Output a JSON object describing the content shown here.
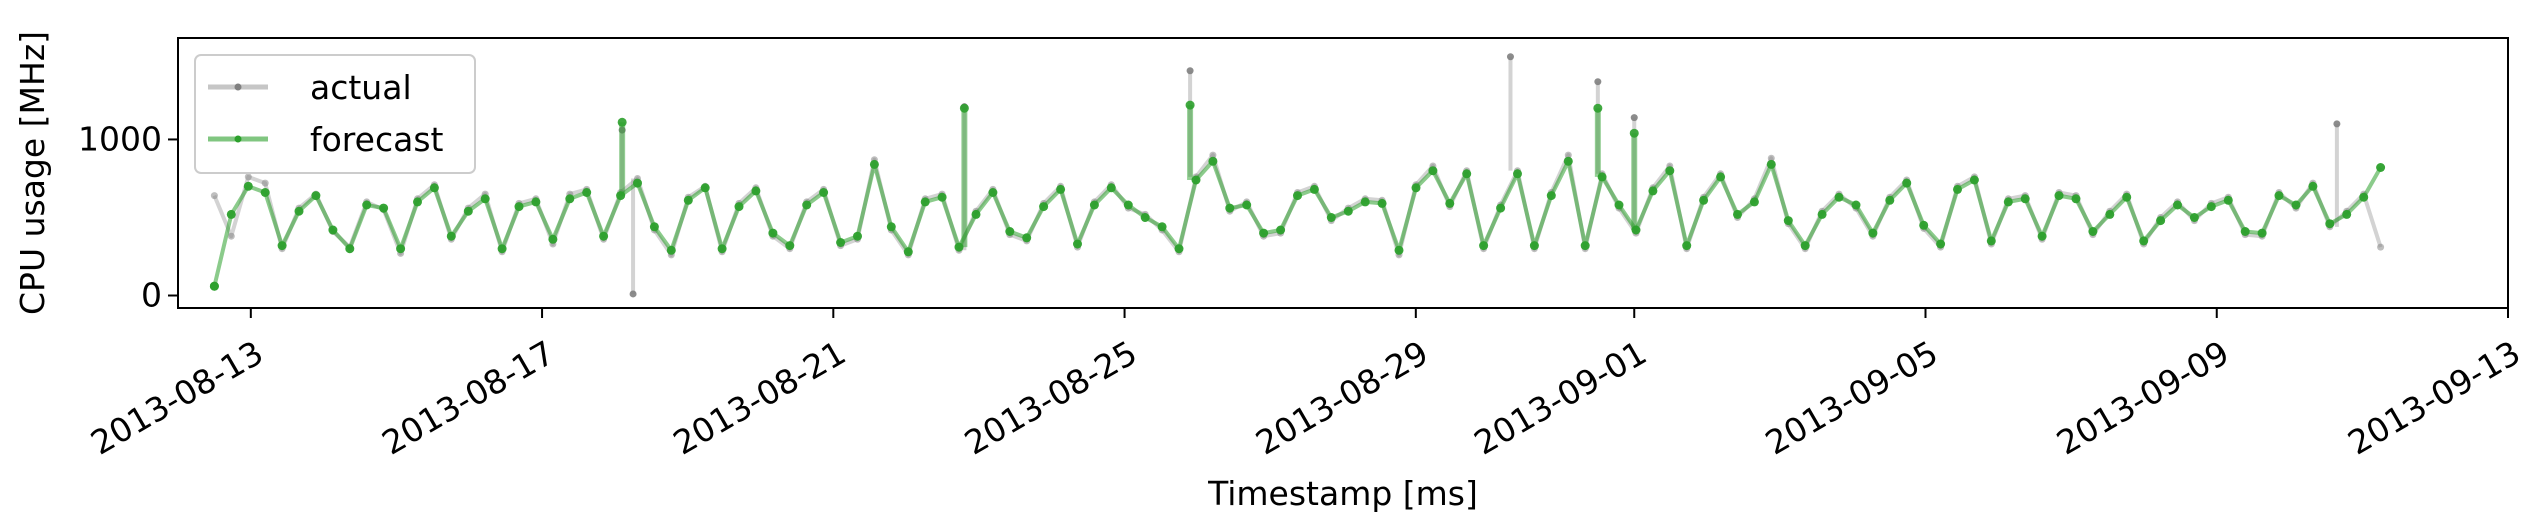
{
  "chart_data": {
    "type": "line",
    "title": "",
    "xlabel": "Timestamp [ms]",
    "ylabel": "CPU usage [MHz]",
    "xlim": [
      "2013-08-12",
      "2013-09-13"
    ],
    "ylim": [
      -80,
      1650
    ],
    "x_ticks": [
      "2013-08-13",
      "2013-08-17",
      "2013-08-21",
      "2013-08-25",
      "2013-08-29",
      "2013-09-01",
      "2013-09-05",
      "2013-09-09",
      "2013-09-13"
    ],
    "y_ticks": [
      0,
      1000
    ],
    "grid": false,
    "legend": {
      "position": "upper-left"
    },
    "series": [
      {
        "name": "actual",
        "color": "#808080",
        "x_start": "2013-08-12T12:00:00",
        "x_end": "2013-09-11T06:00:00",
        "values": [
          640,
          380,
          760,
          720,
          300,
          560,
          650,
          410,
          310,
          600,
          550,
          270,
          620,
          710,
          360,
          560,
          650,
          280,
          590,
          620,
          330,
          650,
          680,
          360,
          660,
          750,
          420,
          260,
          630,
          700,
          280,
          590,
          690,
          380,
          300,
          600,
          680,
          320,
          360,
          870,
          420,
          260,
          620,
          650,
          290,
          540,
          680,
          390,
          350,
          590,
          700,
          310,
          600,
          710,
          560,
          520,
          420,
          280,
          760,
          900,
          540,
          600,
          380,
          400,
          660,
          700,
          480,
          560,
          620,
          610,
          260,
          710,
          830,
          570,
          800,
          300,
          580,
          800,
          300,
          660,
          900,
          300,
          780,
          560,
          400,
          690,
          830,
          300,
          630,
          780,
          500,
          620,
          880,
          460,
          300,
          540,
          650,
          560,
          380,
          630,
          740,
          430,
          310,
          700,
          760,
          330,
          620,
          640,
          360,
          660,
          640,
          390,
          540,
          650,
          330,
          500,
          600,
          480,
          590,
          630,
          390,
          380,
          660,
          560,
          720,
          440,
          540,
          650,
          310
        ],
        "spikes": [
          [
            "2013-08-18T02:24:00",
            1060
          ],
          [
            "2013-08-18T06:00:00",
            10
          ],
          [
            "2013-08-22T19:12:00",
            1210
          ],
          [
            "2013-08-25T21:36:00",
            1440
          ],
          [
            "2013-08-30T07:12:00",
            1530
          ],
          [
            "2013-08-31T12:00:00",
            1370
          ],
          [
            "2013-09-01T00:00:00",
            1140
          ],
          [
            "2013-09-10T15:36:00",
            1100
          ]
        ]
      },
      {
        "name": "forecast",
        "color": "#2ca02c",
        "x_start": "2013-08-12T12:00:00",
        "x_end": "2013-09-11T06:00:00",
        "values": [
          60,
          520,
          700,
          660,
          320,
          540,
          640,
          420,
          300,
          580,
          560,
          300,
          600,
          690,
          380,
          540,
          620,
          300,
          570,
          600,
          360,
          620,
          660,
          380,
          640,
          720,
          440,
          290,
          610,
          690,
          300,
          570,
          670,
          400,
          320,
          580,
          660,
          340,
          380,
          840,
          440,
          280,
          600,
          630,
          310,
          520,
          660,
          410,
          370,
          570,
          680,
          330,
          580,
          690,
          580,
          500,
          440,
          300,
          740,
          860,
          560,
          580,
          400,
          420,
          640,
          680,
          500,
          540,
          600,
          590,
          290,
          690,
          800,
          590,
          780,
          320,
          560,
          780,
          320,
          640,
          860,
          320,
          760,
          580,
          420,
          670,
          800,
          320,
          610,
          760,
          520,
          600,
          840,
          480,
          320,
          520,
          630,
          580,
          400,
          610,
          720,
          450,
          330,
          680,
          740,
          350,
          600,
          620,
          380,
          640,
          620,
          410,
          520,
          630,
          350,
          480,
          580,
          500,
          570,
          610,
          410,
          400,
          640,
          580,
          700,
          460,
          520,
          630,
          820
        ],
        "spikes": [
          [
            "2013-08-12T12:00:00",
            60
          ],
          [
            "2013-08-18T02:24:00",
            1110
          ],
          [
            "2013-08-22T19:12:00",
            1200
          ],
          [
            "2013-08-25T21:36:00",
            1220
          ],
          [
            "2013-08-31T12:00:00",
            1200
          ],
          [
            "2013-09-01T00:00:00",
            1040
          ]
        ]
      }
    ]
  }
}
